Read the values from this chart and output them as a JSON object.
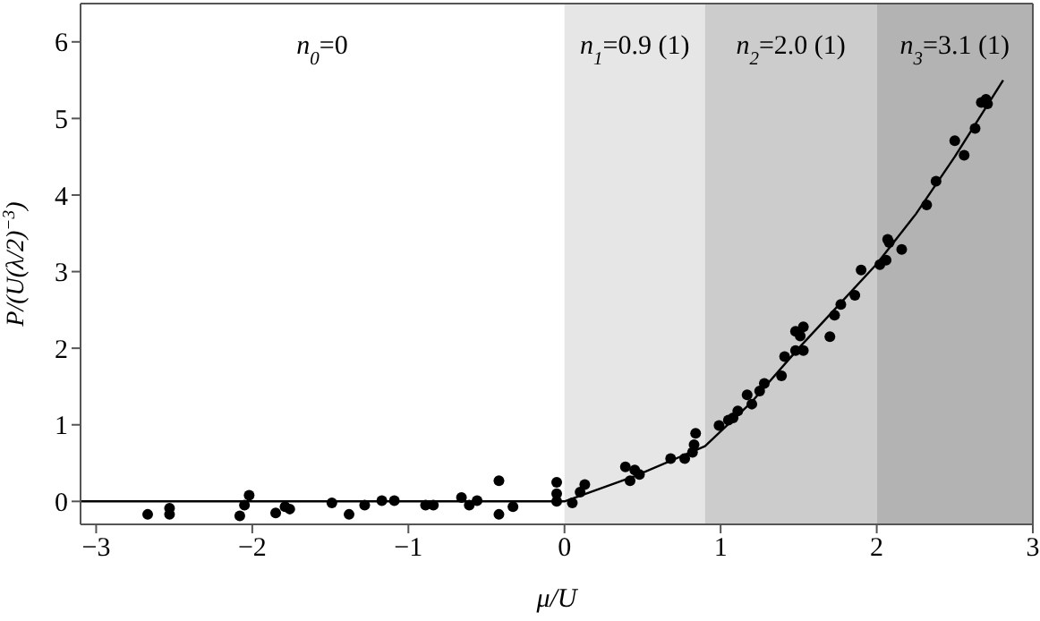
{
  "chart_data": {
    "type": "scatter",
    "xlabel": "μ/U",
    "ylabel": "P/(U(λ/2)$^{−3}$)",
    "xlim": [
      -3.1,
      3.0
    ],
    "ylim": [
      -0.3,
      6.5
    ],
    "xticks": [
      {
        "value": -3,
        "label": "−3"
      },
      {
        "value": -2,
        "label": "−2"
      },
      {
        "value": -1,
        "label": "−1"
      },
      0,
      1,
      2,
      3
    ],
    "yticks": [
      0,
      1,
      2,
      3,
      4,
      5,
      6
    ],
    "annotations": [
      "n$_{0}$=0"
    ],
    "bands": [
      {
        "axis": "x",
        "from": 0,
        "to": 0.9,
        "label": "n$_{1}$=0.9 (1)",
        "color": "#e6e6e6"
      },
      {
        "axis": "x",
        "from": 0.9,
        "to": 2,
        "label": "n$_{2}$=2.0 (1)",
        "color": "#cccccc"
      },
      {
        "axis": "x",
        "from": 2,
        "to": 3.0,
        "label": "n$_{3}$=3.1 (1)",
        "color": "#b3b3b3"
      }
    ],
    "series": [
      {
        "color": "#000000",
        "marker": "circle",
        "x": [
          -2.67,
          -2.53,
          -2.53,
          -2.08,
          -2.05,
          -2.02,
          -1.85,
          -1.79,
          -1.76,
          -1.49,
          -1.38,
          -1.28,
          -1.17,
          -1.09,
          -0.89,
          -0.84,
          -0.66,
          -0.61,
          -0.56,
          -0.42,
          -0.42,
          -0.33,
          -0.05,
          -0.05,
          -0.05,
          0.05,
          0.1,
          0.13,
          0.39,
          0.42,
          0.45,
          0.48,
          0.68,
          0.77,
          0.82,
          0.83,
          0.84,
          0.99,
          1.05,
          1.08,
          1.11,
          1.17,
          1.2,
          1.25,
          1.28,
          1.39,
          1.41,
          1.48,
          1.48,
          1.51,
          1.53,
          1.53,
          1.7,
          1.73,
          1.77,
          1.86,
          1.9,
          2.02,
          2.06,
          2.07,
          2.08,
          2.16,
          2.32,
          2.38,
          2.5,
          2.56,
          2.63,
          2.67,
          2.7,
          2.71
        ],
        "values": [
          -0.17,
          -0.09,
          -0.17,
          -0.19,
          -0.05,
          0.08,
          -0.15,
          -0.07,
          -0.1,
          -0.02,
          -0.17,
          -0.05,
          0.01,
          0.01,
          -0.05,
          -0.05,
          0.05,
          -0.05,
          0.01,
          0.27,
          -0.17,
          -0.07,
          0.25,
          0.1,
          0.0,
          -0.02,
          0.12,
          0.22,
          0.45,
          0.27,
          0.41,
          0.35,
          0.56,
          0.56,
          0.64,
          0.74,
          0.89,
          0.99,
          1.06,
          1.09,
          1.18,
          1.39,
          1.27,
          1.44,
          1.54,
          1.64,
          1.89,
          1.97,
          2.22,
          2.16,
          2.28,
          1.97,
          2.15,
          2.43,
          2.57,
          2.69,
          3.02,
          3.09,
          3.15,
          3.42,
          3.38,
          3.29,
          3.87,
          4.18,
          4.71,
          4.52,
          4.87,
          5.21,
          5.25,
          5.19
        ]
      },
      {
        "type": "line",
        "color": "#000000",
        "marker": "none",
        "line_style": "solid",
        "x": [
          -3.1,
          0,
          0.45,
          0.9,
          1.2,
          1.5,
          1.75,
          2,
          2.25,
          2.5,
          2.81
        ],
        "values": [
          0,
          0,
          0.33,
          0.72,
          1.3,
          2.0,
          2.55,
          3.1,
          3.75,
          4.5,
          5.5
        ]
      }
    ]
  }
}
